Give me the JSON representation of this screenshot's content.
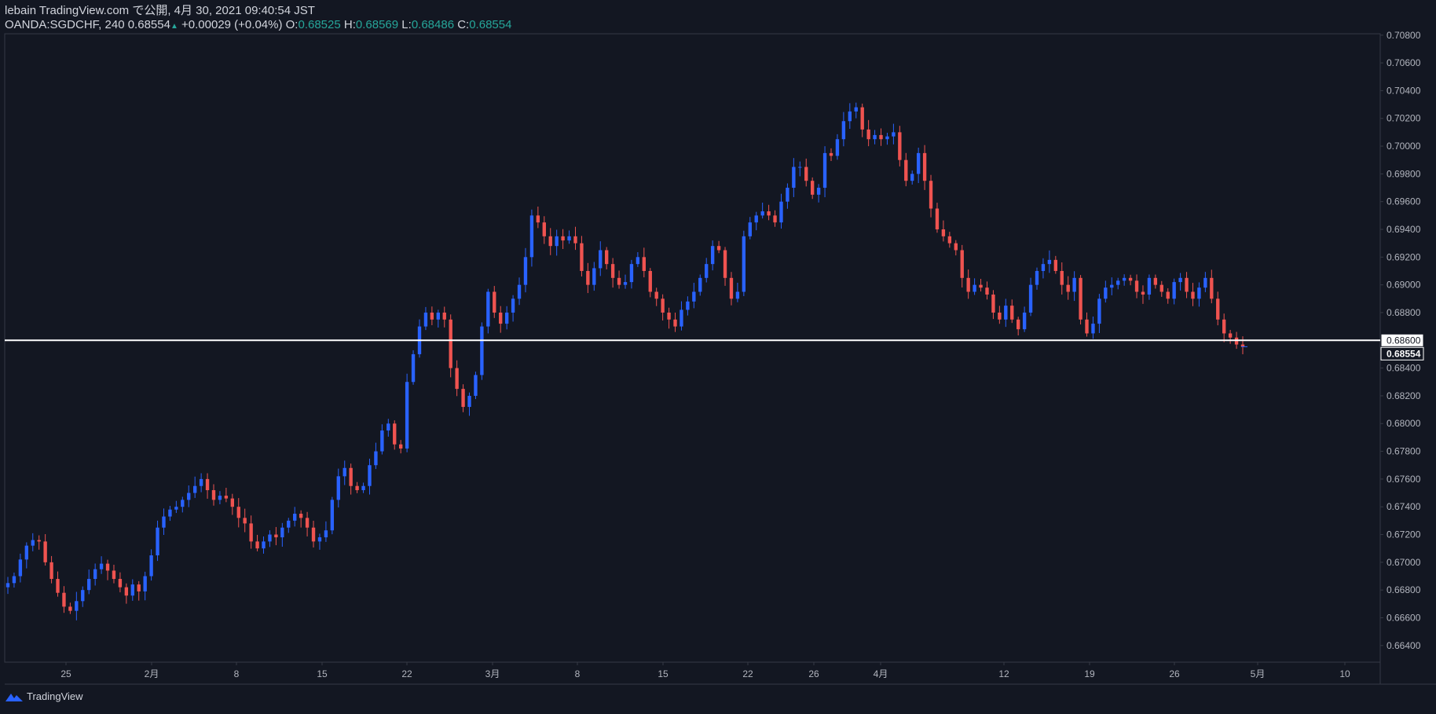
{
  "header": {
    "published_line": "lebain TradingView.com で公開, 4月 30, 2021 09:40:54 JST",
    "symbol": "OANDA:SGDCHF, 240",
    "last": "0.68554",
    "change": "+0.00029 (+0.04%)",
    "o_label": "O:",
    "o_value": "0.68525",
    "h_label": "H:",
    "h_value": "0.68569",
    "l_label": "L:",
    "l_value": "0.68486",
    "c_label": "C:",
    "c_value": "0.68554"
  },
  "footer": {
    "brand": "TradingView"
  },
  "colors": {
    "background": "#131722",
    "up": "#2962ff",
    "down": "#ef5350",
    "axis_text": "#b2b5be",
    "border": "#363a45",
    "horizontal_line": "#ffffff"
  },
  "chart_data": {
    "type": "candlestick",
    "y_axis_ticks": [
      "0.70800",
      "0.70600",
      "0.70400",
      "0.70200",
      "0.70000",
      "0.69800",
      "0.69600",
      "0.69400",
      "0.69200",
      "0.69000",
      "0.68800",
      "0.68400",
      "0.68200",
      "0.68000",
      "0.67800",
      "0.67600",
      "0.67400",
      "0.67200",
      "0.67000",
      "0.66800",
      "0.66600",
      "0.66400"
    ],
    "ylim": [
      0.6628,
      0.7081
    ],
    "x_axis_ticks": [
      "25",
      "2月",
      "8",
      "15",
      "22",
      "3月",
      "8",
      "15",
      "22",
      "26",
      "4月",
      "12",
      "19",
      "26",
      "5月",
      "10"
    ],
    "horizontal_line": {
      "price": 0.686,
      "label": "0.68600"
    },
    "last_price_label": "0.68554",
    "closes": [
      0.6685,
      0.669,
      0.6702,
      0.6712,
      0.6716,
      0.6715,
      0.67,
      0.6688,
      0.6678,
      0.6668,
      0.6665,
      0.6672,
      0.668,
      0.6688,
      0.6695,
      0.6699,
      0.6694,
      0.6688,
      0.6682,
      0.6676,
      0.6684,
      0.6679,
      0.669,
      0.6705,
      0.6725,
      0.6733,
      0.6738,
      0.674,
      0.6745,
      0.675,
      0.6755,
      0.676,
      0.6752,
      0.6745,
      0.6748,
      0.6746,
      0.674,
      0.6732,
      0.6728,
      0.6715,
      0.671,
      0.6715,
      0.672,
      0.6718,
      0.6725,
      0.673,
      0.6735,
      0.6732,
      0.6725,
      0.6715,
      0.6718,
      0.6723,
      0.6745,
      0.6762,
      0.6768,
      0.6755,
      0.6752,
      0.6755,
      0.677,
      0.678,
      0.6795,
      0.68,
      0.6785,
      0.6782,
      0.683,
      0.685,
      0.687,
      0.688,
      0.6875,
      0.688,
      0.6875,
      0.684,
      0.6825,
      0.6812,
      0.682,
      0.6835,
      0.687,
      0.6895,
      0.688,
      0.6872,
      0.688,
      0.689,
      0.69,
      0.692,
      0.695,
      0.6945,
      0.6935,
      0.6928,
      0.6935,
      0.6932,
      0.6935,
      0.693,
      0.691,
      0.69,
      0.6912,
      0.6925,
      0.6915,
      0.6905,
      0.69,
      0.6902,
      0.6915,
      0.692,
      0.691,
      0.6895,
      0.689,
      0.688,
      0.6875,
      0.687,
      0.6882,
      0.6888,
      0.6895,
      0.6905,
      0.6915,
      0.6928,
      0.6925,
      0.6905,
      0.689,
      0.6895,
      0.6935,
      0.6945,
      0.695,
      0.6953,
      0.695,
      0.6945,
      0.696,
      0.697,
      0.6985,
      0.6985,
      0.6975,
      0.6965,
      0.697,
      0.6995,
      0.6993,
      0.7005,
      0.7018,
      0.7025,
      0.7028,
      0.7012,
      0.7005,
      0.7008,
      0.7005,
      0.7007,
      0.701,
      0.699,
      0.6975,
      0.698,
      0.6995,
      0.6975,
      0.6955,
      0.694,
      0.6935,
      0.693,
      0.6925,
      0.6905,
      0.6895,
      0.69,
      0.6898,
      0.6893,
      0.688,
      0.6875,
      0.6885,
      0.6875,
      0.6868,
      0.688,
      0.69,
      0.691,
      0.6915,
      0.6918,
      0.691,
      0.69,
      0.6895,
      0.6905,
      0.6875,
      0.6865,
      0.6872,
      0.689,
      0.6898,
      0.69,
      0.6903,
      0.6905,
      0.6903,
      0.6895,
      0.6893,
      0.6905,
      0.69,
      0.6895,
      0.689,
      0.6902,
      0.6905,
      0.6895,
      0.689,
      0.6898,
      0.6905,
      0.689,
      0.6875,
      0.6865,
      0.6862,
      0.6857,
      0.68554
    ]
  }
}
